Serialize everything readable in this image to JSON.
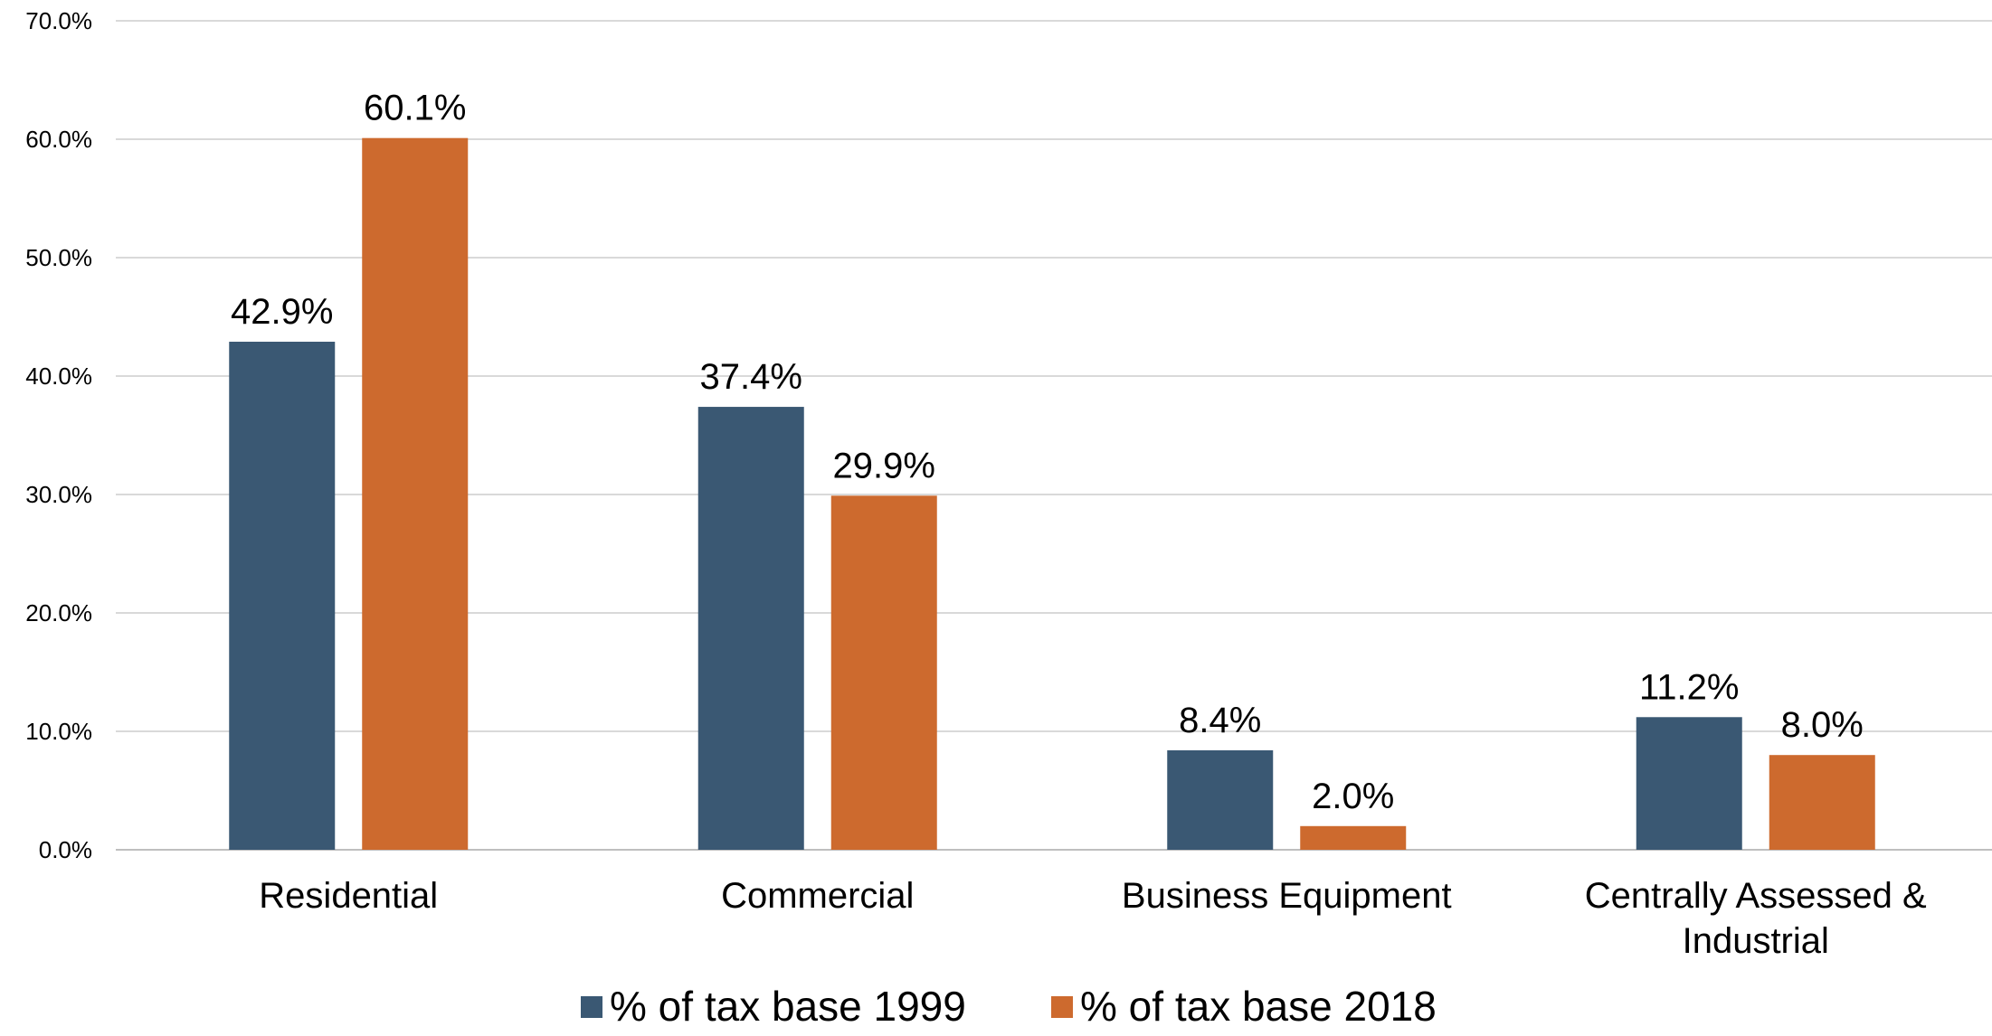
{
  "chart_data": {
    "type": "bar",
    "title": "",
    "xlabel": "",
    "ylabel": "",
    "ylim": [
      0,
      70
    ],
    "y_ticks": [
      "0.0%",
      "10.0%",
      "20.0%",
      "30.0%",
      "40.0%",
      "50.0%",
      "60.0%",
      "70.0%"
    ],
    "categories": [
      [
        "Residential"
      ],
      [
        "Commercial"
      ],
      [
        "Business Equipment"
      ],
      [
        "Centrally Assessed &",
        "Industrial"
      ]
    ],
    "series": [
      {
        "name": "% of tax base 1999",
        "color": "#3a5873",
        "values": [
          42.9,
          37.4,
          8.4,
          11.2
        ],
        "labels": [
          "42.9%",
          "37.4%",
          "8.4%",
          "11.2%"
        ]
      },
      {
        "name": "% of tax base 2018",
        "color": "#cd6a2e",
        "values": [
          60.1,
          29.9,
          2.0,
          8.0
        ],
        "labels": [
          "60.1%",
          "29.9%",
          "2.0%",
          "8.0%"
        ]
      }
    ],
    "grid": true,
    "legend_position": "bottom"
  }
}
